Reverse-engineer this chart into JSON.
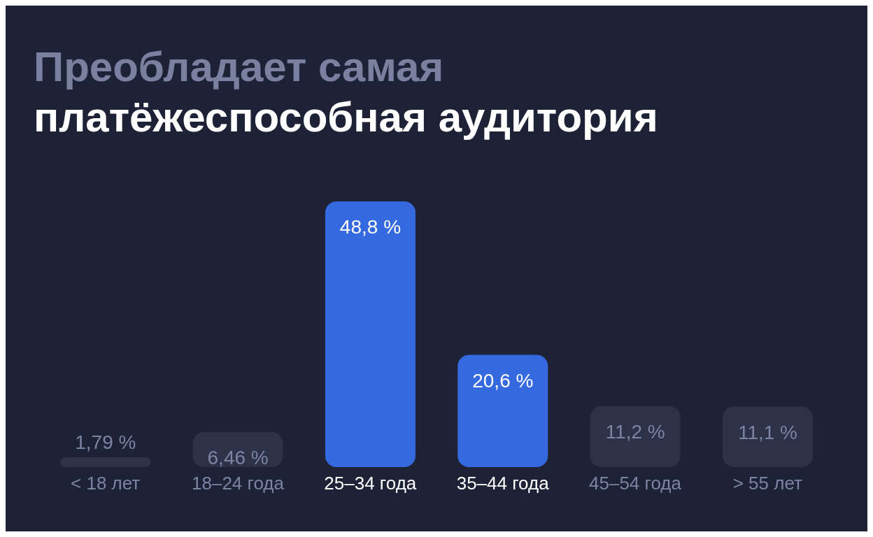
{
  "chart_data": {
    "type": "bar",
    "title": "Преобладает самая",
    "subtitle": "платёжеспособная аудитория",
    "categories": [
      "< 18 лет",
      "18–24 года",
      "25–34 года",
      "35–44 года",
      "45–54 года",
      "> 55 лет"
    ],
    "values": [
      1.79,
      6.46,
      48.8,
      20.6,
      11.2,
      11.1
    ],
    "value_labels": [
      "1,79 %",
      "6,46 %",
      "48,8 %",
      "20,6 %",
      "11,2 %",
      "11,1 %"
    ],
    "colors": [
      "#2e3249",
      "#2e3249",
      "#3469e0",
      "#3469e0",
      "#2e3249",
      "#2e3249"
    ],
    "grid": false,
    "legend": false
  }
}
